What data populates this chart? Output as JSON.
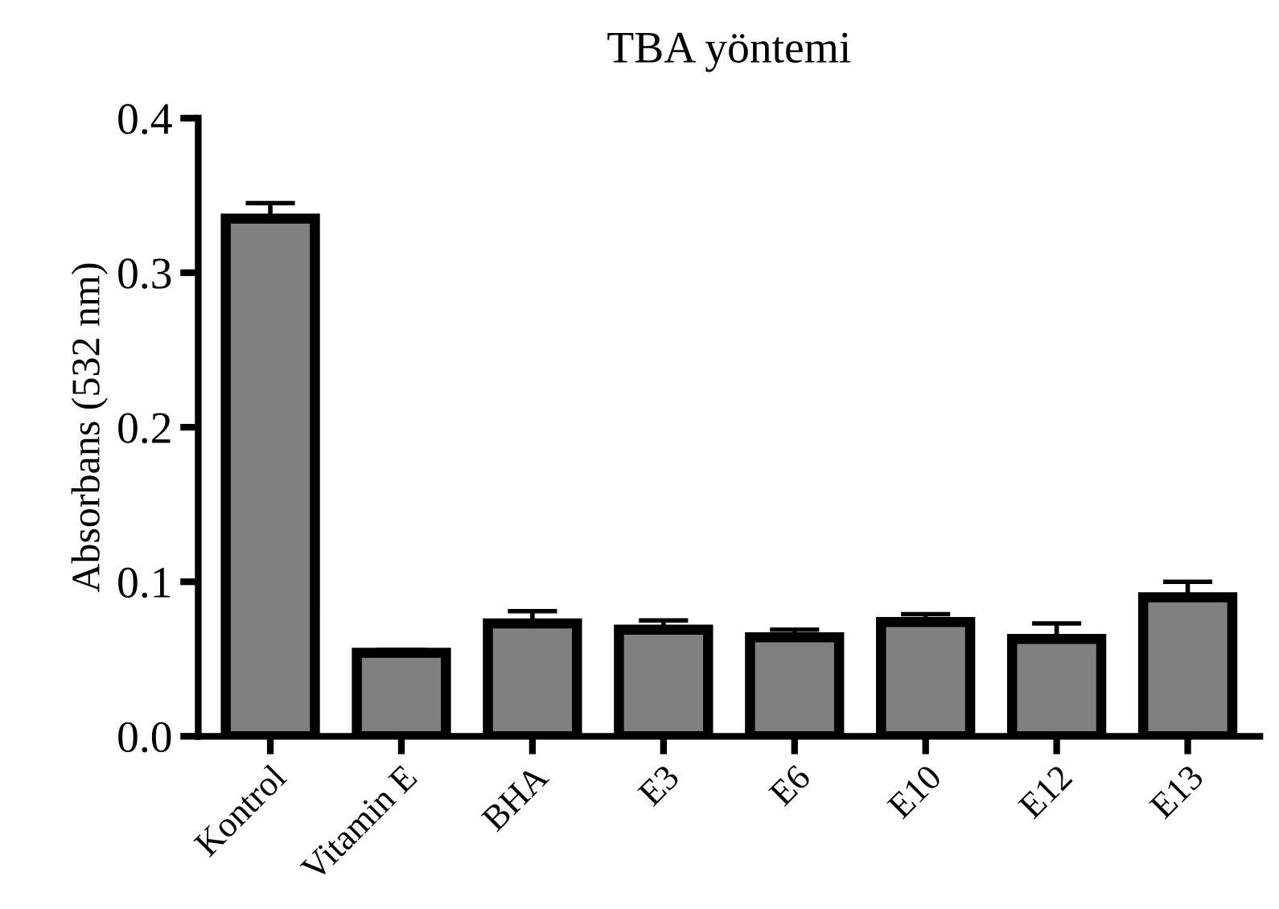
{
  "chart_data": {
    "type": "bar",
    "title": "TBA yöntemi",
    "ylabel": "Absorbans (532 nm)",
    "categories": [
      "Kontrol",
      "Vitamin E",
      "BHA",
      "E3",
      "E6",
      "E10",
      "E12",
      "E13"
    ],
    "values": [
      0.335,
      0.054,
      0.073,
      0.069,
      0.064,
      0.074,
      0.063,
      0.09
    ],
    "errors": [
      [
        0.335,
        0.345
      ],
      [
        0.054,
        0.056
      ],
      [
        0.073,
        0.081
      ],
      [
        0.069,
        0.075
      ],
      [
        0.064,
        0.069
      ],
      [
        0.074,
        0.079
      ],
      [
        0.063,
        0.073
      ],
      [
        0.09,
        0.1
      ]
    ],
    "color": "#808080",
    "ylim": [
      0,
      0.4
    ],
    "yticks": [
      {
        "value": 0,
        "label": "0.0"
      },
      {
        "value": 0.1,
        "label": "0.1"
      },
      {
        "value": 0.2,
        "label": "0.2"
      },
      {
        "value": 0.3,
        "label": "0.3"
      },
      {
        "value": 0.4,
        "label": "0.4"
      }
    ],
    "grid": false
  }
}
